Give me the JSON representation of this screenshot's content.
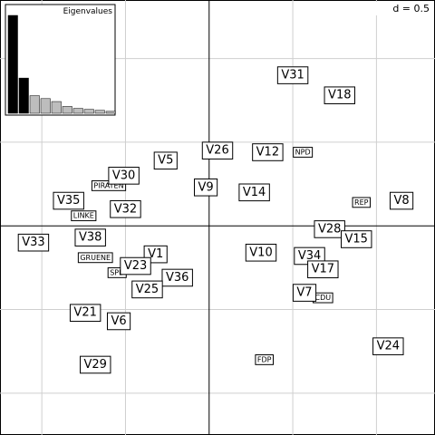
{
  "chart_data": {
    "type": "scatter",
    "scale_label": "d = 0.5",
    "grid": true,
    "xlim": [
      -1.25,
      1.35
    ],
    "ylim": [
      -1.25,
      1.35
    ],
    "grid_step": 0.5,
    "points_large": [
      {
        "label": "V31",
        "x": 0.5,
        "y": 0.9
      },
      {
        "label": "V18",
        "x": 0.78,
        "y": 0.78
      },
      {
        "label": "V26",
        "x": 0.05,
        "y": 0.45
      },
      {
        "label": "V12",
        "x": 0.35,
        "y": 0.44
      },
      {
        "label": "V5",
        "x": -0.26,
        "y": 0.39
      },
      {
        "label": "V30",
        "x": -0.51,
        "y": 0.3
      },
      {
        "label": "V9",
        "x": -0.02,
        "y": 0.23
      },
      {
        "label": "V14",
        "x": 0.27,
        "y": 0.2
      },
      {
        "label": "V8",
        "x": 1.15,
        "y": 0.15
      },
      {
        "label": "V35",
        "x": -0.84,
        "y": 0.15
      },
      {
        "label": "V32",
        "x": -0.5,
        "y": 0.1
      },
      {
        "label": "V28",
        "x": 0.72,
        "y": -0.02
      },
      {
        "label": "V15",
        "x": 0.88,
        "y": -0.08
      },
      {
        "label": "V38",
        "x": -0.71,
        "y": -0.07
      },
      {
        "label": "V33",
        "x": -1.05,
        "y": -0.1
      },
      {
        "label": "V10",
        "x": 0.31,
        "y": -0.16
      },
      {
        "label": "V34",
        "x": 0.6,
        "y": -0.18
      },
      {
        "label": "V1",
        "x": -0.32,
        "y": -0.17
      },
      {
        "label": "V17",
        "x": 0.68,
        "y": -0.26
      },
      {
        "label": "V23",
        "x": -0.44,
        "y": -0.24
      },
      {
        "label": "V36",
        "x": -0.19,
        "y": -0.31
      },
      {
        "label": "V25",
        "x": -0.37,
        "y": -0.38
      },
      {
        "label": "V7",
        "x": 0.57,
        "y": -0.4
      },
      {
        "label": "V21",
        "x": -0.74,
        "y": -0.52
      },
      {
        "label": "V6",
        "x": -0.54,
        "y": -0.57
      },
      {
        "label": "V24",
        "x": 1.07,
        "y": -0.72
      },
      {
        "label": "V29",
        "x": -0.68,
        "y": -0.83
      }
    ],
    "points_small": [
      {
        "label": "NPD",
        "x": 0.56,
        "y": 0.44
      },
      {
        "label": "PIRATEN",
        "x": -0.6,
        "y": 0.24
      },
      {
        "label": "REP",
        "x": 0.91,
        "y": 0.14
      },
      {
        "label": "LINKE",
        "x": -0.75,
        "y": 0.06
      },
      {
        "label": "GRUENE",
        "x": -0.68,
        "y": -0.19
      },
      {
        "label": "SPD",
        "x": -0.55,
        "y": -0.28
      },
      {
        "label": "CDU",
        "x": 0.68,
        "y": -0.43
      },
      {
        "label": "FDP",
        "x": 0.33,
        "y": -0.8
      }
    ],
    "eigenvalues": {
      "title": "Eigenvalues",
      "values": [
        1.0,
        0.36,
        0.18,
        0.15,
        0.12,
        0.07,
        0.05,
        0.04,
        0.03,
        0.02
      ],
      "highlighted": 2
    }
  }
}
